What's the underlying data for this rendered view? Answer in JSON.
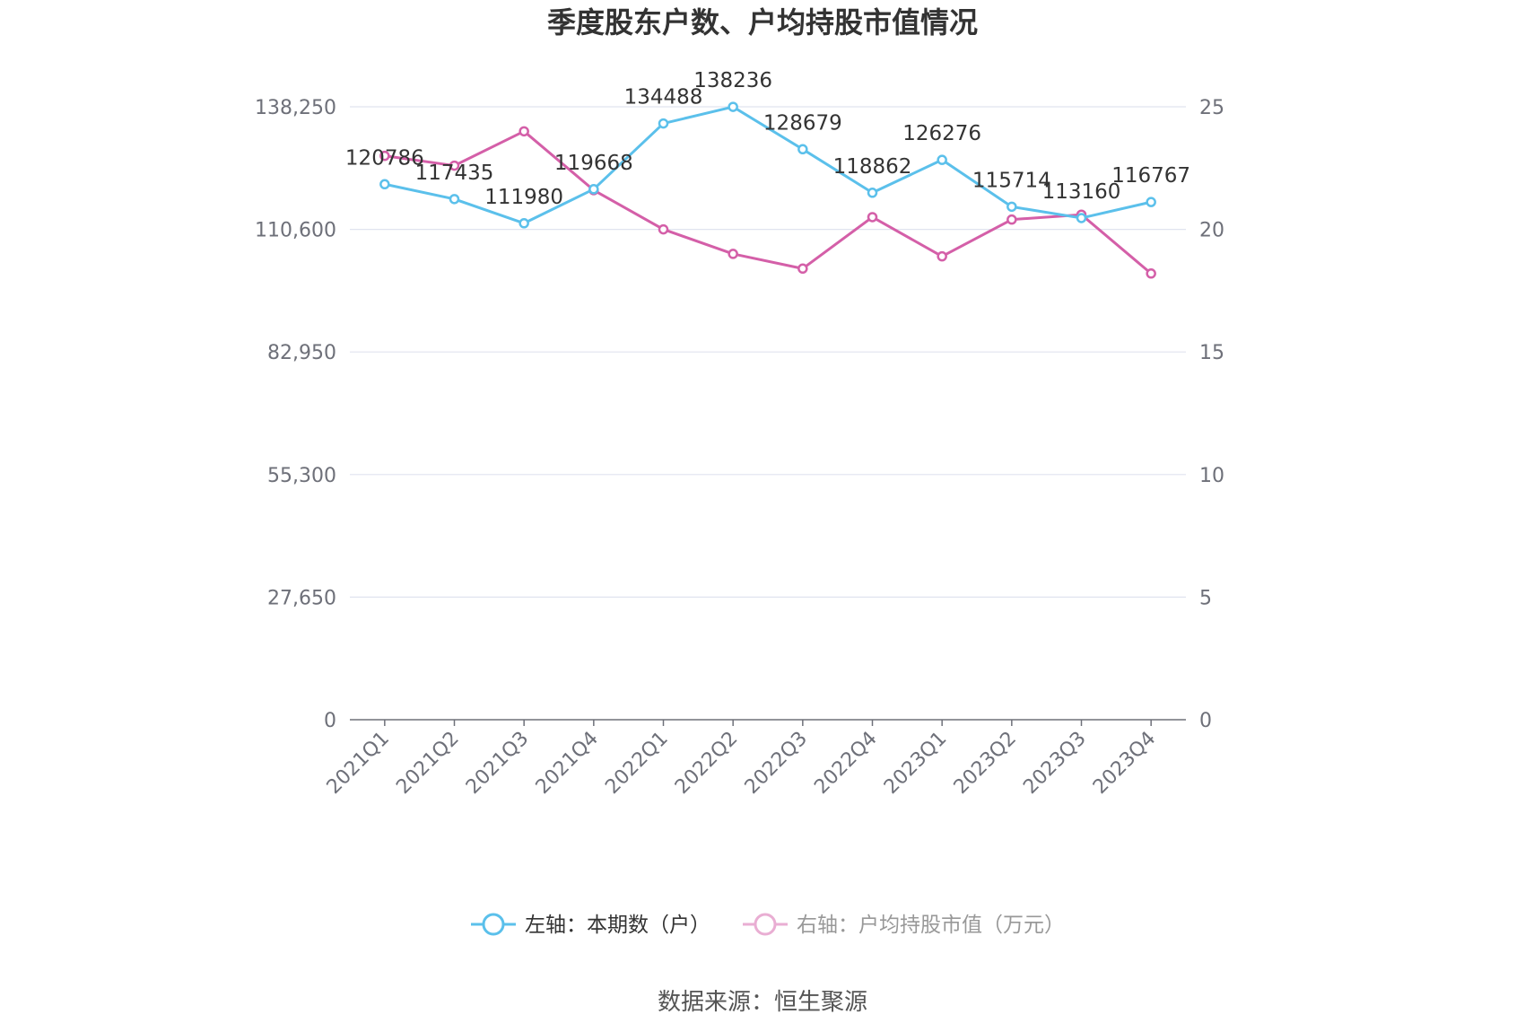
{
  "chart_data": {
    "type": "line",
    "title": "季度股东户数、户均持股市值情况",
    "categories": [
      "2021Q1",
      "2021Q2",
      "2021Q3",
      "2021Q4",
      "2022Q1",
      "2022Q2",
      "2022Q3",
      "2022Q4",
      "2023Q1",
      "2023Q2",
      "2023Q3",
      "2023Q4"
    ],
    "left_axis": {
      "ticks": [
        "0",
        "27,650",
        "55,300",
        "82,950",
        "110,600",
        "138,250"
      ],
      "ylim": [
        0,
        138250
      ]
    },
    "right_axis": {
      "ticks": [
        "0",
        "5",
        "10",
        "15",
        "20",
        "25"
      ],
      "ylim": [
        0,
        25
      ]
    },
    "series": [
      {
        "name": "左轴：本期数（户）",
        "axis": "left",
        "color": "#5bc0eb",
        "values": [
          120786,
          117435,
          111980,
          119668,
          134488,
          138236,
          128679,
          118862,
          126276,
          115714,
          113160,
          116767
        ],
        "labels": [
          "120786",
          "117435",
          "111980",
          "119668",
          "134488",
          "138236",
          "128679",
          "118862",
          "126276",
          "115714",
          "113160",
          "116767"
        ]
      },
      {
        "name": "右轴：户均持股市值（万元）",
        "axis": "right",
        "color": "#d45fa8",
        "values": [
          23.0,
          22.6,
          24.0,
          21.6,
          20.0,
          19.0,
          18.4,
          20.5,
          18.9,
          20.4,
          20.6,
          18.2
        ]
      }
    ],
    "grid": true,
    "legend_position": "bottom"
  },
  "source": "数据来源：恒生聚源"
}
